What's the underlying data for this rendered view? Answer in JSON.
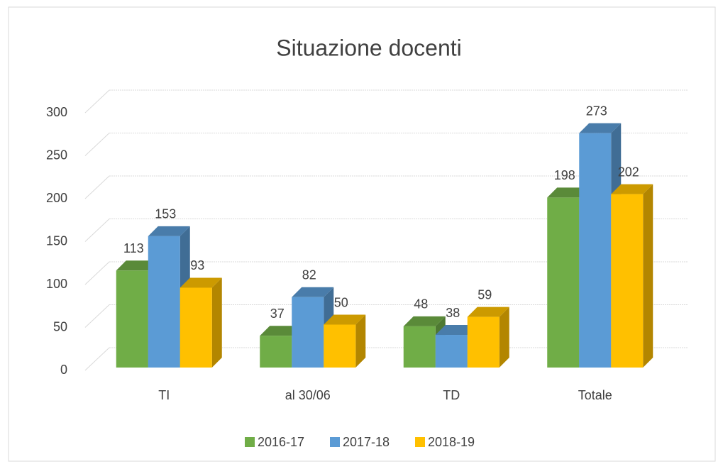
{
  "chart_data": {
    "type": "bar",
    "title": "Situazione docenti",
    "categories": [
      "TI",
      "al 30/06",
      "TD",
      "Totale"
    ],
    "series": [
      {
        "name": "2016-17",
        "color": "#70ad47",
        "values": [
          113,
          37,
          48,
          198
        ]
      },
      {
        "name": "2017-18",
        "color": "#5b9bd5",
        "values": [
          153,
          82,
          38,
          273
        ]
      },
      {
        "name": "2018-19",
        "color": "#ffc000",
        "values": [
          93,
          50,
          59,
          202
        ]
      }
    ],
    "ylim": [
      0,
      300
    ],
    "yticks": [
      0,
      50,
      100,
      150,
      200,
      250,
      300
    ],
    "grid": true,
    "legend": "bottom"
  }
}
